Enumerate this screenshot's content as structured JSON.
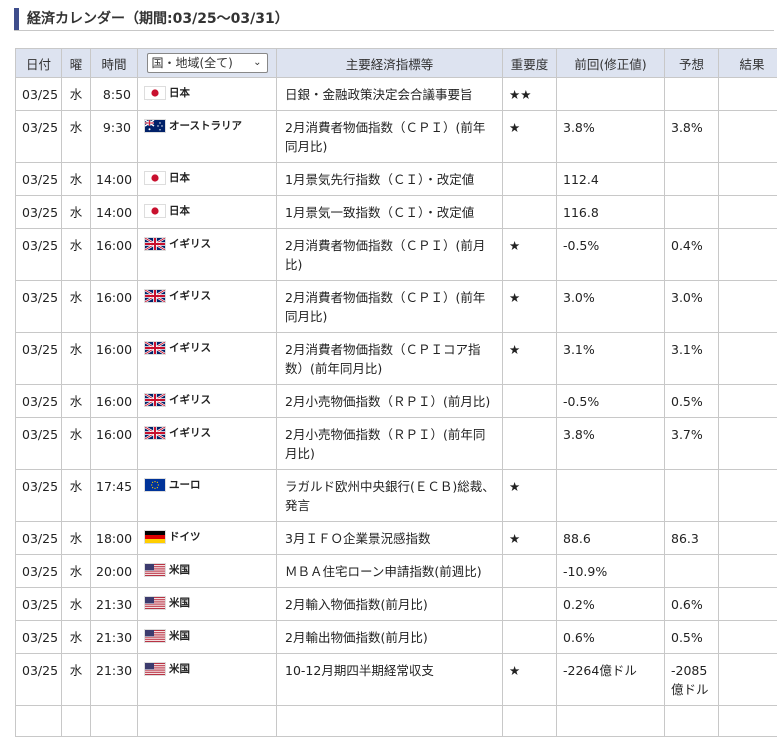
{
  "page_title": "経済カレンダー（期間:03/25〜03/31）",
  "headers": {
    "date": "日付",
    "day": "曜",
    "time": "時間",
    "region_select": "国・地域(全て)",
    "event": "主要経済指標等",
    "importance": "重要度",
    "previous": "前回(修正値)",
    "forecast": "予想",
    "result": "結果"
  },
  "rows": [
    {
      "date": "03/25",
      "day": "水",
      "time": "8:50",
      "flag": "jp",
      "region": "日本",
      "event": "日銀・金融政策決定会合議事要旨",
      "importance": "★★",
      "previous": "",
      "forecast": "",
      "result": ""
    },
    {
      "date": "03/25",
      "day": "水",
      "time": "9:30",
      "flag": "au",
      "region": "オーストラリア",
      "event": "2月消費者物価指数（ＣＰＩ）(前年同月比)",
      "importance": "★",
      "previous": "3.8%",
      "forecast": "3.8%",
      "result": ""
    },
    {
      "date": "03/25",
      "day": "水",
      "time": "14:00",
      "flag": "jp",
      "region": "日本",
      "event": "1月景気先行指数（ＣＩ）・改定値",
      "importance": "",
      "previous": "112.4",
      "forecast": "",
      "result": ""
    },
    {
      "date": "03/25",
      "day": "水",
      "time": "14:00",
      "flag": "jp",
      "region": "日本",
      "event": "1月景気一致指数（ＣＩ）・改定値",
      "importance": "",
      "previous": "116.8",
      "forecast": "",
      "result": ""
    },
    {
      "date": "03/25",
      "day": "水",
      "time": "16:00",
      "flag": "uk",
      "region": "イギリス",
      "event": "2月消費者物価指数（ＣＰＩ）(前月比)",
      "importance": "★",
      "previous": "-0.5%",
      "forecast": "0.4%",
      "result": ""
    },
    {
      "date": "03/25",
      "day": "水",
      "time": "16:00",
      "flag": "uk",
      "region": "イギリス",
      "event": "2月消費者物価指数（ＣＰＩ）(前年同月比)",
      "importance": "★",
      "previous": "3.0%",
      "forecast": "3.0%",
      "result": ""
    },
    {
      "date": "03/25",
      "day": "水",
      "time": "16:00",
      "flag": "uk",
      "region": "イギリス",
      "event": "2月消費者物価指数（ＣＰＩコア指数）(前年同月比)",
      "importance": "★",
      "previous": "3.1%",
      "forecast": "3.1%",
      "result": ""
    },
    {
      "date": "03/25",
      "day": "水",
      "time": "16:00",
      "flag": "uk",
      "region": "イギリス",
      "event": "2月小売物価指数（ＲＰＩ）(前月比)",
      "importance": "",
      "previous": "-0.5%",
      "forecast": "0.5%",
      "result": ""
    },
    {
      "date": "03/25",
      "day": "水",
      "time": "16:00",
      "flag": "uk",
      "region": "イギリス",
      "event": "2月小売物価指数（ＲＰＩ）(前年同月比)",
      "importance": "",
      "previous": "3.8%",
      "forecast": "3.7%",
      "result": ""
    },
    {
      "date": "03/25",
      "day": "水",
      "time": "17:45",
      "flag": "eu",
      "region": "ユーロ",
      "event": "ラガルド欧州中央銀行(ＥＣＢ)総裁、発言",
      "importance": "★",
      "previous": "",
      "forecast": "",
      "result": ""
    },
    {
      "date": "03/25",
      "day": "水",
      "time": "18:00",
      "flag": "de",
      "region": "ドイツ",
      "event": "3月ＩＦＯ企業景況感指数",
      "importance": "★",
      "previous": "88.6",
      "forecast": "86.3",
      "result": ""
    },
    {
      "date": "03/25",
      "day": "水",
      "time": "20:00",
      "flag": "us",
      "region": "米国",
      "event": "ＭＢＡ住宅ローン申請指数(前週比)",
      "importance": "",
      "previous": "-10.9%",
      "forecast": "",
      "result": ""
    },
    {
      "date": "03/25",
      "day": "水",
      "time": "21:30",
      "flag": "us",
      "region": "米国",
      "event": "2月輸入物価指数(前月比)",
      "importance": "",
      "previous": "0.2%",
      "forecast": "0.6%",
      "result": ""
    },
    {
      "date": "03/25",
      "day": "水",
      "time": "21:30",
      "flag": "us",
      "region": "米国",
      "event": "2月輸出物価指数(前月比)",
      "importance": "",
      "previous": "0.6%",
      "forecast": "0.5%",
      "result": ""
    },
    {
      "date": "03/25",
      "day": "水",
      "time": "21:30",
      "flag": "us",
      "region": "米国",
      "event": "10-12月期四半期経常収支",
      "importance": "★",
      "previous": "-2264億ドル",
      "forecast": "-2085億ドル",
      "result": ""
    }
  ],
  "colors": {
    "header_bg": "#dde3f0",
    "accent": "#3e4d8c",
    "border": "#c8c8c8"
  }
}
